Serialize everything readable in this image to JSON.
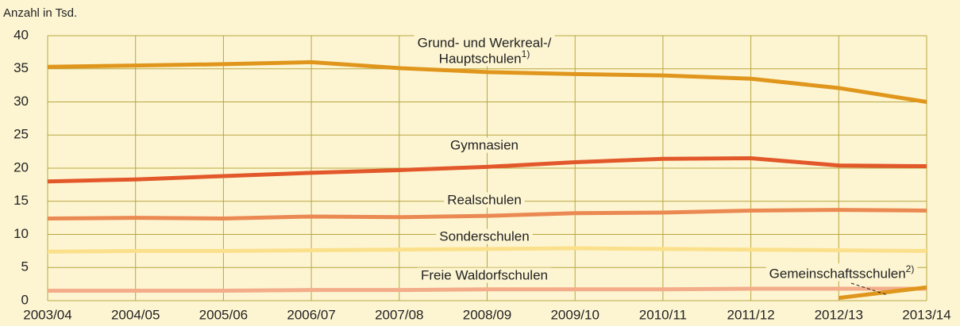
{
  "chart_data": {
    "type": "line",
    "y_axis_label": "Anzahl in Tsd.",
    "categories": [
      "2003/04",
      "2004/05",
      "2005/06",
      "2006/07",
      "2007/08",
      "2008/09",
      "2009/10",
      "2010/11",
      "2011/12",
      "2012/13",
      "2013/14"
    ],
    "ylim": [
      0,
      40
    ],
    "yticks": [
      0,
      5,
      10,
      15,
      20,
      25,
      30,
      35,
      40
    ],
    "grid": true,
    "series": [
      {
        "name_lines": [
          "Grund- und Werkreal-/",
          "Hauptschulen"
        ],
        "footnote": "1)",
        "color": "#e0961c",
        "values": [
          35.3,
          35.5,
          35.7,
          36.0,
          35.1,
          34.5,
          34.2,
          34.0,
          33.5,
          32.1,
          30.0
        ]
      },
      {
        "name": "Gymnasien",
        "color": "#e2582a",
        "values": [
          18.0,
          18.3,
          18.8,
          19.3,
          19.7,
          20.2,
          20.9,
          21.4,
          21.5,
          20.4,
          20.3
        ]
      },
      {
        "name": "Realschulen",
        "color": "#eb8953",
        "values": [
          12.4,
          12.5,
          12.4,
          12.7,
          12.6,
          12.8,
          13.2,
          13.3,
          13.6,
          13.7,
          13.6
        ]
      },
      {
        "name": "Sonderschulen",
        "color": "#fbe08c",
        "values": [
          7.4,
          7.5,
          7.5,
          7.6,
          7.7,
          7.8,
          7.9,
          7.8,
          7.7,
          7.6,
          7.5
        ]
      },
      {
        "name": "Freie Waldorfschulen",
        "color": "#f3ad8a",
        "values": [
          1.5,
          1.5,
          1.5,
          1.6,
          1.6,
          1.7,
          1.7,
          1.7,
          1.8,
          1.8,
          1.8
        ]
      },
      {
        "name": "Gemeinschaftsschulen",
        "footnote": "2)",
        "color": "#e0961c",
        "values": [
          null,
          null,
          null,
          null,
          null,
          null,
          null,
          null,
          null,
          0.4,
          2.0
        ]
      }
    ]
  }
}
